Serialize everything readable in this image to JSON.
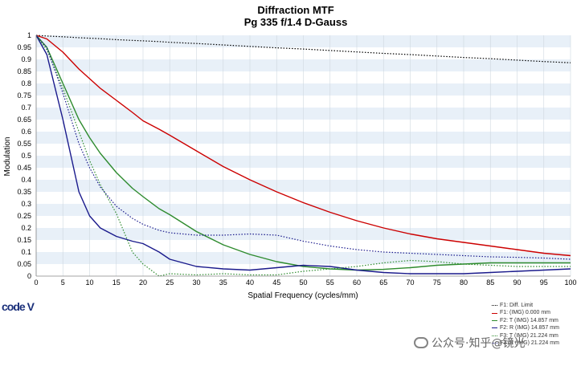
{
  "chart_data": {
    "type": "line",
    "title": "Diffraction MTF",
    "subtitle": "Pg 335 f/1.4 D-Gauss",
    "xlabel": "Spatial Frequency (cycles/mm)",
    "ylabel": "Modulation",
    "xlim": [
      0,
      100
    ],
    "ylim": [
      0,
      1
    ],
    "x_ticks": [
      0,
      5,
      10,
      15,
      20,
      25,
      30,
      35,
      40,
      45,
      50,
      55,
      60,
      65,
      70,
      75,
      80,
      85,
      90,
      95,
      100
    ],
    "y_ticks": [
      0,
      0.05,
      0.1,
      0.15,
      0.2,
      0.25,
      0.3,
      0.35,
      0.4,
      0.45,
      0.5,
      0.55,
      0.6,
      0.65,
      0.7,
      0.75,
      0.8,
      0.85,
      0.9,
      0.95,
      1
    ],
    "y_tick_labels": [
      "0",
      "0.05",
      "0.1",
      "0.15",
      "0.2",
      "0.25",
      "0.3",
      "0.35",
      "0.4",
      "0.45",
      "0.5",
      "0.55",
      "0.6",
      "0.65",
      "0.7",
      "0.75",
      "0.8",
      "0.85",
      "0.9",
      "0.95",
      "1"
    ],
    "grid": "horizontal-bands",
    "legend_position": "bottom-right",
    "x": [
      0,
      2,
      5,
      8,
      10,
      12,
      15,
      18,
      20,
      23,
      25,
      30,
      35,
      40,
      45,
      50,
      55,
      60,
      65,
      70,
      75,
      80,
      85,
      90,
      95,
      100
    ],
    "series": [
      {
        "name": "F1: Diff. Limit",
        "color": "#000000",
        "style": "dotted",
        "values": [
          1.0,
          0.997,
          0.994,
          0.99,
          0.988,
          0.986,
          0.982,
          0.979,
          0.977,
          0.974,
          0.971,
          0.966,
          0.96,
          0.954,
          0.948,
          0.943,
          0.937,
          0.931,
          0.925,
          0.92,
          0.914,
          0.908,
          0.903,
          0.897,
          0.891,
          0.886
        ]
      },
      {
        "name": "F1: (IMG) 0.000 mm",
        "color": "#cc0000",
        "style": "solid",
        "values": [
          1.0,
          0.985,
          0.93,
          0.86,
          0.82,
          0.78,
          0.73,
          0.68,
          0.645,
          0.61,
          0.585,
          0.52,
          0.455,
          0.4,
          0.35,
          0.305,
          0.265,
          0.23,
          0.2,
          0.175,
          0.155,
          0.14,
          0.125,
          0.11,
          0.095,
          0.085
        ]
      },
      {
        "name": "F2: T (IMG) 14.857 mm",
        "color": "#2e8b2e",
        "style": "solid",
        "values": [
          1.0,
          0.95,
          0.8,
          0.65,
          0.575,
          0.51,
          0.43,
          0.365,
          0.33,
          0.28,
          0.255,
          0.185,
          0.13,
          0.09,
          0.06,
          0.04,
          0.03,
          0.025,
          0.028,
          0.035,
          0.045,
          0.05,
          0.055,
          0.055,
          0.055,
          0.055
        ]
      },
      {
        "name": "F2: R (IMG) 14.857 mm",
        "color": "#1a1a8c",
        "style": "solid",
        "values": [
          1.0,
          0.92,
          0.65,
          0.35,
          0.25,
          0.2,
          0.165,
          0.145,
          0.135,
          0.1,
          0.07,
          0.04,
          0.03,
          0.025,
          0.035,
          0.045,
          0.04,
          0.025,
          0.015,
          0.01,
          0.01,
          0.01,
          0.015,
          0.02,
          0.025,
          0.03
        ]
      },
      {
        "name": "F3: T (IMG) 21.224 mm",
        "color": "#2e8b2e",
        "style": "dotted",
        "values": [
          1.0,
          0.94,
          0.78,
          0.6,
          0.48,
          0.38,
          0.26,
          0.1,
          0.05,
          0.0,
          0.01,
          0.005,
          0.01,
          0.005,
          0.005,
          0.02,
          0.03,
          0.04,
          0.055,
          0.065,
          0.06,
          0.05,
          0.045,
          0.04,
          0.04,
          0.04
        ]
      },
      {
        "name": "F3: R (IMG) 21.224 mm",
        "color": "#1a1a8c",
        "style": "dotted",
        "values": [
          1.0,
          0.95,
          0.76,
          0.55,
          0.45,
          0.37,
          0.29,
          0.24,
          0.215,
          0.19,
          0.18,
          0.17,
          0.17,
          0.175,
          0.17,
          0.145,
          0.125,
          0.11,
          0.1,
          0.095,
          0.09,
          0.085,
          0.08,
          0.078,
          0.075,
          0.07
        ]
      }
    ]
  },
  "logo_text": "code V",
  "watermark_text": "公众号·知乎@镜光"
}
